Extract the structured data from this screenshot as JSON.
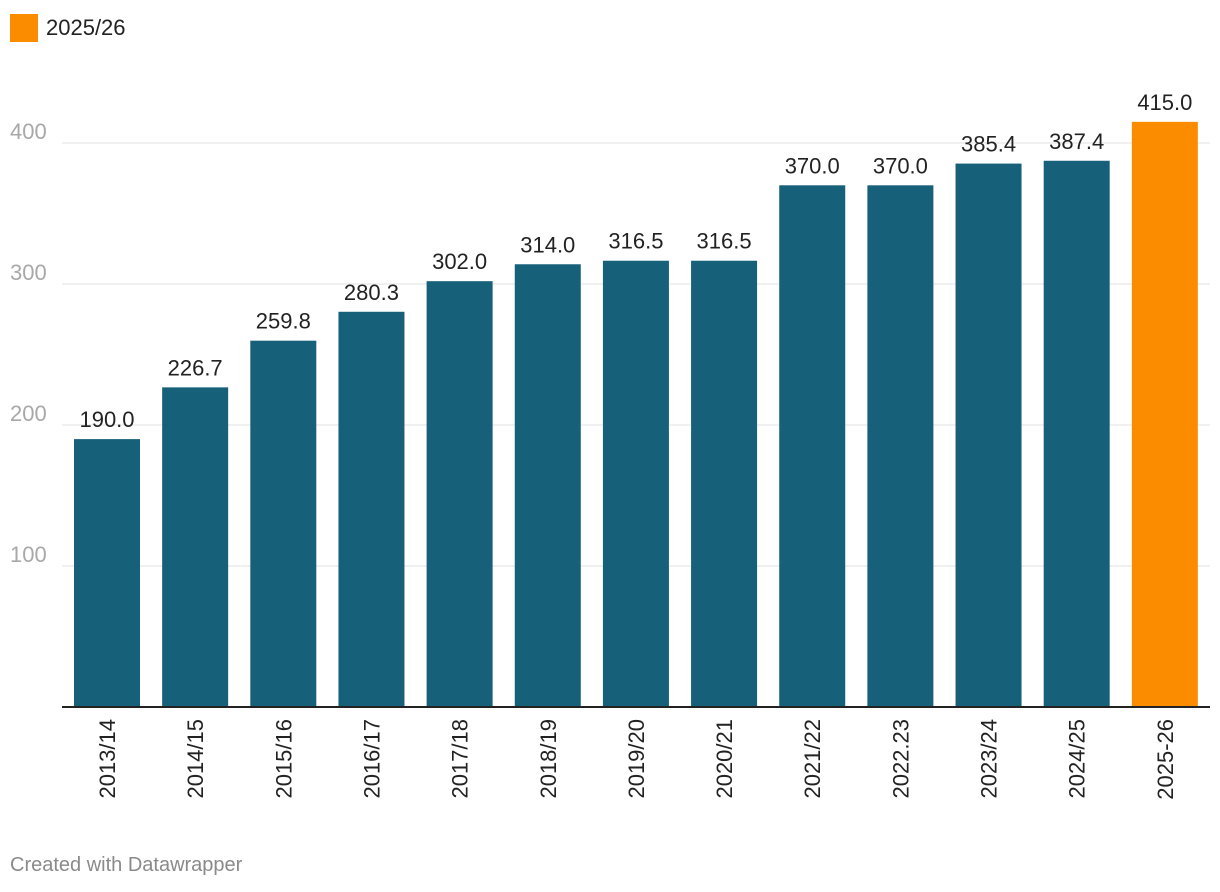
{
  "legend": {
    "label": "2025/26",
    "color": "#fb8c00"
  },
  "footer": {
    "credit": "Created with Datawrapper"
  },
  "colors": {
    "bar": "#17607a",
    "highlight": "#fb8c00",
    "grid": "#e2e2e2",
    "axis": "#222222",
    "tick_text": "#a8a8a8"
  },
  "chart_data": {
    "type": "bar",
    "title": "",
    "xlabel": "",
    "ylabel": "",
    "ylim": [
      0,
      440
    ],
    "yticks": [
      100,
      200,
      300,
      400
    ],
    "grid": true,
    "legend_position": "top-left",
    "categories": [
      "2013/14",
      "2014/15",
      "2015/16",
      "2016/17",
      "2017/18",
      "2018/19",
      "2019/20",
      "2020/21",
      "2021/22",
      "2022.23",
      "2023/24",
      "2024/25",
      "2025-26"
    ],
    "values": [
      190.0,
      226.7,
      259.8,
      280.3,
      302.0,
      314.0,
      316.5,
      316.5,
      370.0,
      370.0,
      385.4,
      387.4,
      415.0
    ],
    "value_labels": [
      "190.0",
      "226.7",
      "259.8",
      "280.3",
      "302.0",
      "314.0",
      "316.5",
      "316.5",
      "370.0",
      "370.0",
      "385.4",
      "387.4",
      "415.0"
    ],
    "highlight_index": 12
  }
}
